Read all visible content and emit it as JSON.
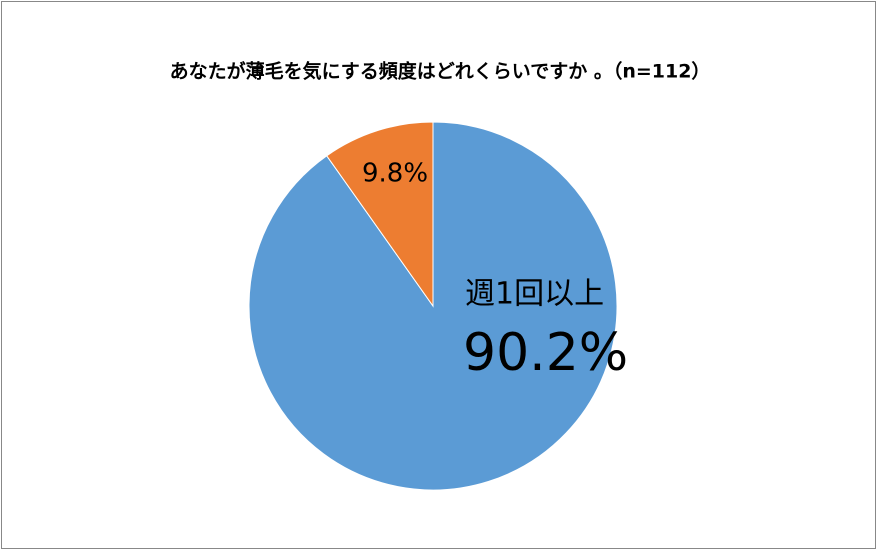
{
  "chart_data": {
    "type": "pie",
    "title": "あなたが薄毛を気にする頻度はどれくらいですか 。（n=112）",
    "categories": [
      "週1回以上",
      null
    ],
    "values": [
      90.2,
      9.8
    ],
    "value_labels": [
      "90.2%",
      "9.8%"
    ],
    "colors": [
      "#5b9bd5",
      "#ed7d31"
    ]
  }
}
